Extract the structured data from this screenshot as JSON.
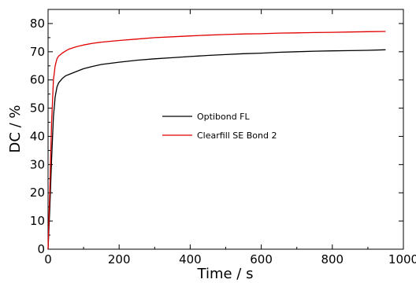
{
  "chart_data": {
    "type": "line",
    "xlabel": "Time / s",
    "ylabel": "DC / %",
    "xlim": [
      0,
      1000
    ],
    "ylim": [
      0,
      85
    ],
    "xticks": [
      0,
      200,
      400,
      600,
      800,
      1000
    ],
    "yticks": [
      0,
      10,
      20,
      30,
      40,
      50,
      60,
      70,
      80
    ],
    "grid": false,
    "legend_position": "center",
    "series": [
      {
        "name": "Optibond FL",
        "color": "#000000",
        "x": [
          0,
          5,
          10,
          15,
          20,
          25,
          30,
          40,
          50,
          60,
          80,
          100,
          125,
          150,
          200,
          250,
          300,
          350,
          400,
          450,
          500,
          550,
          600,
          650,
          700,
          750,
          800,
          850,
          900,
          950
        ],
        "y": [
          0,
          15,
          32,
          47,
          54,
          57.5,
          59,
          60.5,
          61.5,
          62,
          63,
          64,
          64.8,
          65.5,
          66.3,
          67,
          67.5,
          67.9,
          68.3,
          68.7,
          69,
          69.3,
          69.5,
          69.8,
          70,
          70.2,
          70.3,
          70.4,
          70.5,
          70.7
        ]
      },
      {
        "name": "Clearfill SE Bond 2",
        "color": "#e00000",
        "x": [
          0,
          5,
          10,
          15,
          20,
          25,
          30,
          40,
          50,
          60,
          80,
          100,
          125,
          150,
          200,
          250,
          300,
          350,
          400,
          450,
          500,
          550,
          600,
          650,
          700,
          750,
          800,
          850,
          900,
          950
        ],
        "y": [
          0,
          22,
          45,
          60,
          65,
          67.5,
          68.5,
          69.5,
          70.3,
          71,
          71.8,
          72.4,
          73,
          73.4,
          74,
          74.5,
          75,
          75.3,
          75.6,
          75.9,
          76.1,
          76.3,
          76.4,
          76.6,
          76.7,
          76.8,
          76.9,
          77,
          77.1,
          77.2
        ]
      }
    ]
  }
}
